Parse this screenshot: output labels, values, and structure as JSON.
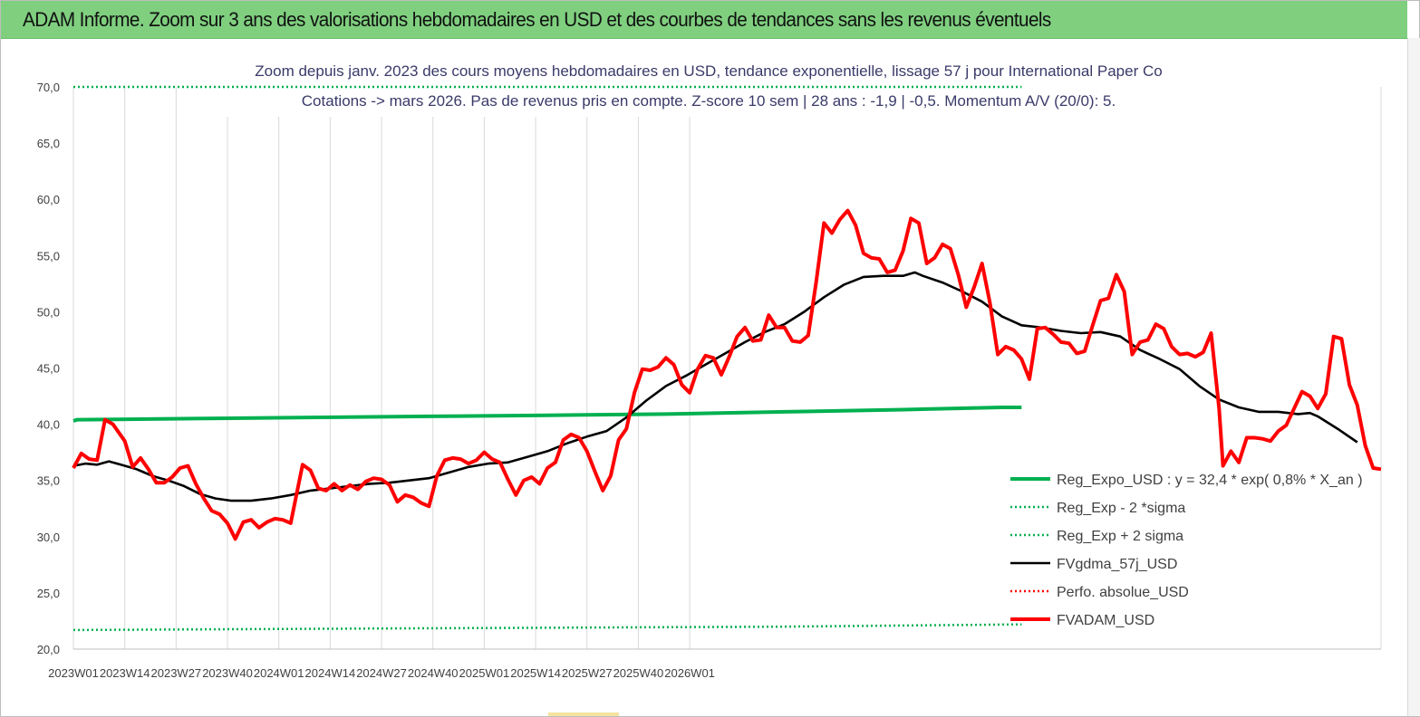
{
  "banner": {
    "title": "ADAM Informe. Zoom sur 3 ans des valorisations hebdomadaires en USD et des courbes de tendances sans les revenus éventuels"
  },
  "colors": {
    "regression": "#00b050",
    "moving_average": "#000000",
    "price": "#ff0000",
    "grid": "#d9d9d9",
    "banner": "#7fcf7f",
    "subtitle_text": "#3a3a6a"
  },
  "chart_data": {
    "type": "line",
    "title_lines": [
      "Zoom depuis janv. 2023 des cours moyens hebdomadaires en USD, tendance exponentielle, lissage 57 j pour International Paper Co",
      "Cotations -> mars 2026. Pas de revenus pris en compte. Z-score 10 sem  | 28 ans : -1,9 | -0,5. Momentum A/V (20/0): 5."
    ],
    "ylim": [
      20,
      70
    ],
    "y_ticks": [
      "20,0",
      "25,0",
      "30,0",
      "35,0",
      "40,0",
      "45,0",
      "50,0",
      "55,0",
      "60,0",
      "65,0",
      "70,0"
    ],
    "x_ticks": [
      "2023W01",
      "2023W14",
      "2023W27",
      "2023W40",
      "2024W01",
      "2024W14",
      "2024W27",
      "2024W40",
      "2025W01",
      "2025W14",
      "2025W27",
      "2025W40",
      "2026W01"
    ],
    "x_unit": "week index from 2023W01",
    "grid": "vertical",
    "legend_position": "bottom-right",
    "series": [
      {
        "name": "Reg_Expo_USD : y = 32,4 * exp( 0,8% *  X_an )",
        "style": "solid-thick",
        "points": [
          [
            0,
            40.3
          ],
          [
            1,
            40.4
          ],
          [
            30,
            40.5
          ],
          [
            60,
            40.6
          ],
          [
            90,
            40.7
          ],
          [
            120,
            40.8
          ],
          [
            150,
            40.9
          ],
          [
            180,
            41.1
          ],
          [
            210,
            41.3
          ],
          [
            235,
            41.5
          ],
          [
            240,
            41.5
          ]
        ]
      },
      {
        "name": "Reg_Exp - 2 *sigma",
        "style": "dotted",
        "points": [
          [
            0,
            21.7
          ],
          [
            60,
            21.8
          ],
          [
            120,
            21.9
          ],
          [
            180,
            22.0
          ],
          [
            240,
            22.2
          ]
        ]
      },
      {
        "name": "Reg_Exp + 2 sigma",
        "style": "dotted",
        "points": [
          [
            0,
            70.0
          ],
          [
            240,
            70.0
          ]
        ]
      },
      {
        "name": "FVgdma_57j_USD",
        "style": "solid",
        "points": [
          [
            0,
            36.3
          ],
          [
            3,
            36.5
          ],
          [
            6,
            36.4
          ],
          [
            9,
            36.7
          ],
          [
            12,
            36.4
          ],
          [
            16,
            36.0
          ],
          [
            18,
            35.7
          ],
          [
            20,
            35.4
          ],
          [
            24,
            35.0
          ],
          [
            28,
            34.5
          ],
          [
            32,
            33.8
          ],
          [
            36,
            33.4
          ],
          [
            40,
            33.2
          ],
          [
            45,
            33.2
          ],
          [
            50,
            33.4
          ],
          [
            55,
            33.7
          ],
          [
            60,
            34.1
          ],
          [
            65,
            34.3
          ],
          [
            70,
            34.5
          ],
          [
            75,
            34.7
          ],
          [
            80,
            34.8
          ],
          [
            85,
            35.0
          ],
          [
            90,
            35.2
          ],
          [
            95,
            35.7
          ],
          [
            100,
            36.2
          ],
          [
            105,
            36.5
          ],
          [
            110,
            36.6
          ],
          [
            115,
            37.1
          ],
          [
            120,
            37.6
          ],
          [
            125,
            38.3
          ],
          [
            130,
            38.9
          ],
          [
            135,
            39.4
          ],
          [
            140,
            40.6
          ],
          [
            145,
            42.1
          ],
          [
            150,
            43.4
          ],
          [
            155,
            44.3
          ],
          [
            160,
            45.3
          ],
          [
            165,
            46.3
          ],
          [
            170,
            47.3
          ],
          [
            175,
            48.2
          ],
          [
            180,
            48.9
          ],
          [
            185,
            50.0
          ],
          [
            190,
            51.3
          ],
          [
            195,
            52.4
          ],
          [
            200,
            53.1
          ],
          [
            205,
            53.2
          ],
          [
            210,
            53.2
          ],
          [
            213,
            53.5
          ],
          [
            215,
            53.2
          ],
          [
            220,
            52.6
          ],
          [
            225,
            51.8
          ],
          [
            230,
            50.9
          ],
          [
            235,
            49.6
          ],
          [
            240,
            48.8
          ],
          [
            245,
            48.6
          ],
          [
            250,
            48.3
          ],
          [
            255,
            48.1
          ],
          [
            260,
            48.2
          ],
          [
            265,
            47.8
          ],
          [
            270,
            46.6
          ],
          [
            275,
            45.8
          ],
          [
            280,
            44.9
          ],
          [
            285,
            43.4
          ],
          [
            290,
            42.2
          ],
          [
            295,
            41.5
          ],
          [
            300,
            41.1
          ],
          [
            305,
            41.1
          ],
          [
            310,
            40.9
          ],
          [
            313,
            41.0
          ],
          [
            315,
            40.7
          ],
          [
            320,
            39.6
          ],
          [
            325,
            38.4
          ]
        ]
      },
      {
        "name": "Perfo. absolue_USD",
        "style": "dotted",
        "points": []
      },
      {
        "name": "FVADAM_USD",
        "style": "solid-thick",
        "points": [
          [
            0,
            36.1
          ],
          [
            2,
            37.4
          ],
          [
            4,
            36.9
          ],
          [
            6,
            36.8
          ],
          [
            8,
            40.4
          ],
          [
            10,
            40.0
          ],
          [
            13,
            38.5
          ],
          [
            15,
            36.2
          ],
          [
            17,
            37.0
          ],
          [
            19,
            36.0
          ],
          [
            21,
            34.8
          ],
          [
            23,
            34.8
          ],
          [
            25,
            35.3
          ],
          [
            27,
            36.1
          ],
          [
            29,
            36.3
          ],
          [
            31,
            34.7
          ],
          [
            33,
            33.4
          ],
          [
            35,
            32.3
          ],
          [
            37,
            32.0
          ],
          [
            39,
            31.2
          ],
          [
            41,
            29.8
          ],
          [
            43,
            31.3
          ],
          [
            45,
            31.5
          ],
          [
            47,
            30.8
          ],
          [
            49,
            31.3
          ],
          [
            51,
            31.6
          ],
          [
            53,
            31.5
          ],
          [
            55,
            31.2
          ],
          [
            58,
            36.4
          ],
          [
            60,
            35.9
          ],
          [
            62,
            34.3
          ],
          [
            64,
            34.1
          ],
          [
            66,
            34.7
          ],
          [
            68,
            34.1
          ],
          [
            70,
            34.6
          ],
          [
            72,
            34.2
          ],
          [
            74,
            34.9
          ],
          [
            76,
            35.2
          ],
          [
            78,
            35.1
          ],
          [
            80,
            34.6
          ],
          [
            82,
            33.1
          ],
          [
            84,
            33.7
          ],
          [
            86,
            33.5
          ],
          [
            88,
            33.0
          ],
          [
            90,
            32.7
          ],
          [
            92,
            35.4
          ],
          [
            94,
            36.8
          ],
          [
            96,
            37.0
          ],
          [
            98,
            36.9
          ],
          [
            100,
            36.5
          ],
          [
            102,
            36.8
          ],
          [
            104,
            37.5
          ],
          [
            106,
            36.9
          ],
          [
            108,
            36.6
          ],
          [
            110,
            35.1
          ],
          [
            112,
            33.7
          ],
          [
            114,
            35.0
          ],
          [
            116,
            35.3
          ],
          [
            118,
            34.7
          ],
          [
            120,
            36.1
          ],
          [
            122,
            36.6
          ],
          [
            124,
            38.6
          ],
          [
            126,
            39.1
          ],
          [
            128,
            38.8
          ],
          [
            130,
            37.6
          ],
          [
            132,
            35.8
          ],
          [
            134,
            34.1
          ],
          [
            136,
            35.4
          ],
          [
            138,
            38.6
          ],
          [
            140,
            39.6
          ],
          [
            142,
            42.8
          ],
          [
            144,
            44.9
          ],
          [
            146,
            44.8
          ],
          [
            148,
            45.1
          ],
          [
            150,
            45.9
          ],
          [
            152,
            45.3
          ],
          [
            154,
            43.5
          ],
          [
            156,
            42.8
          ],
          [
            158,
            44.9
          ],
          [
            160,
            46.1
          ],
          [
            162,
            45.9
          ],
          [
            164,
            44.4
          ],
          [
            166,
            46.0
          ],
          [
            168,
            47.8
          ],
          [
            170,
            48.6
          ],
          [
            172,
            47.4
          ],
          [
            174,
            47.5
          ],
          [
            176,
            49.7
          ],
          [
            178,
            48.6
          ],
          [
            180,
            48.6
          ],
          [
            182,
            47.4
          ],
          [
            184,
            47.3
          ],
          [
            186,
            47.9
          ],
          [
            188,
            52.6
          ],
          [
            190,
            57.9
          ],
          [
            192,
            57.0
          ],
          [
            194,
            58.2
          ],
          [
            196,
            59.0
          ],
          [
            198,
            57.7
          ],
          [
            200,
            55.2
          ],
          [
            202,
            54.8
          ],
          [
            204,
            54.7
          ],
          [
            206,
            53.5
          ],
          [
            208,
            53.7
          ],
          [
            210,
            55.4
          ],
          [
            212,
            58.3
          ],
          [
            214,
            57.9
          ],
          [
            216,
            54.3
          ],
          [
            218,
            54.8
          ],
          [
            220,
            56.0
          ],
          [
            222,
            55.6
          ],
          [
            224,
            53.3
          ],
          [
            226,
            50.4
          ],
          [
            228,
            52.2
          ],
          [
            230,
            54.3
          ],
          [
            232,
            50.8
          ],
          [
            234,
            46.2
          ],
          [
            236,
            46.9
          ],
          [
            238,
            46.6
          ],
          [
            240,
            45.8
          ],
          [
            242,
            44.0
          ],
          [
            244,
            48.5
          ],
          [
            246,
            48.6
          ],
          [
            248,
            48.0
          ],
          [
            250,
            47.3
          ],
          [
            252,
            47.2
          ],
          [
            254,
            46.3
          ],
          [
            256,
            46.5
          ],
          [
            258,
            48.8
          ],
          [
            260,
            51.0
          ],
          [
            262,
            51.2
          ],
          [
            264,
            53.3
          ],
          [
            266,
            51.8
          ],
          [
            268,
            46.2
          ],
          [
            270,
            47.3
          ],
          [
            272,
            47.5
          ],
          [
            274,
            48.9
          ],
          [
            276,
            48.5
          ],
          [
            278,
            46.9
          ],
          [
            280,
            46.2
          ],
          [
            282,
            46.3
          ],
          [
            284,
            46.0
          ],
          [
            286,
            46.4
          ],
          [
            288,
            48.1
          ],
          [
            290,
            41.4
          ],
          [
            291,
            36.3
          ],
          [
            293,
            37.6
          ],
          [
            295,
            36.6
          ],
          [
            297,
            38.8
          ],
          [
            299,
            38.8
          ],
          [
            301,
            38.7
          ],
          [
            303,
            38.5
          ],
          [
            305,
            39.4
          ],
          [
            307,
            39.9
          ],
          [
            309,
            41.4
          ],
          [
            311,
            42.9
          ],
          [
            313,
            42.5
          ],
          [
            315,
            41.4
          ],
          [
            317,
            42.7
          ],
          [
            319,
            47.8
          ],
          [
            321,
            47.6
          ],
          [
            323,
            43.5
          ],
          [
            325,
            41.7
          ],
          [
            327,
            38.1
          ],
          [
            329,
            36.1
          ],
          [
            331,
            36.0
          ]
        ]
      }
    ]
  }
}
